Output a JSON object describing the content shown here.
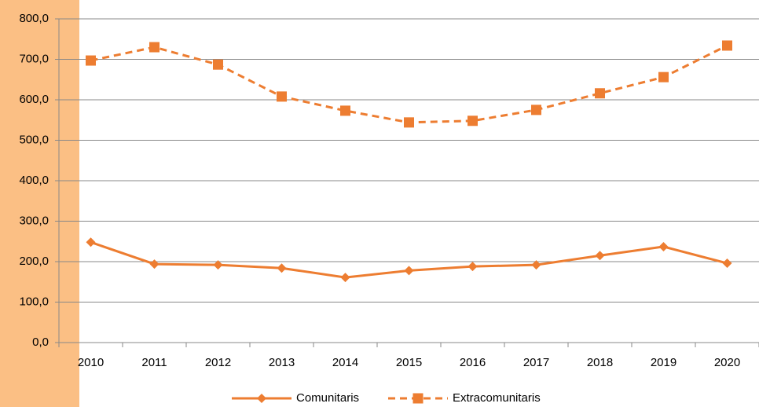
{
  "chart_data": {
    "type": "line",
    "categories": [
      "2010",
      "2011",
      "2012",
      "2013",
      "2014",
      "2015",
      "2016",
      "2017",
      "2018",
      "2019",
      "2020"
    ],
    "series": [
      {
        "name": "Comunitaris",
        "color": "#ed7d31",
        "dash": false,
        "marker": "diamond",
        "values": [
          248,
          194,
          192,
          184,
          161,
          178,
          188,
          192,
          215,
          237,
          196
        ]
      },
      {
        "name": "Extracomunitaris",
        "color": "#ed7d31",
        "dash": true,
        "marker": "square",
        "values": [
          697,
          730,
          687,
          608,
          573,
          544,
          548,
          575,
          616,
          656,
          734
        ]
      }
    ],
    "ylim": [
      0,
      800
    ],
    "yticks": [
      {
        "value": 0,
        "label": "0,0"
      },
      {
        "value": 100,
        "label": "100,0"
      },
      {
        "value": 200,
        "label": "200,0"
      },
      {
        "value": 300,
        "label": "300,0"
      },
      {
        "value": 400,
        "label": "400,0"
      },
      {
        "value": 500,
        "label": "500,0"
      },
      {
        "value": 600,
        "label": "600,0"
      },
      {
        "value": 700,
        "label": "700,0"
      },
      {
        "value": 800,
        "label": "800,0"
      }
    ],
    "grid": true,
    "legend": "bottom"
  }
}
